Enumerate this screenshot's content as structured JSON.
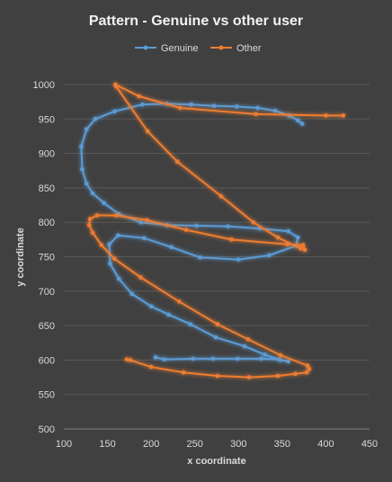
{
  "chart_data": {
    "type": "scatter",
    "title": "Pattern - Genuine vs other user",
    "xlabel": "x coordinate",
    "ylabel": "y coordinate",
    "xlim": [
      100,
      450
    ],
    "ylim": [
      500,
      1000
    ],
    "xticks": [
      100,
      150,
      200,
      250,
      300,
      350,
      400,
      450
    ],
    "yticks": [
      500,
      550,
      600,
      650,
      700,
      750,
      800,
      850,
      900,
      950,
      1000
    ],
    "grid": true,
    "legend": "top",
    "series": [
      {
        "name": "Genuine",
        "color": "#5B9BD5",
        "points": [
          [
            373,
            943
          ],
          [
            368,
            948
          ],
          [
            358,
            955
          ],
          [
            342,
            962
          ],
          [
            322,
            966
          ],
          [
            298,
            968
          ],
          [
            272,
            969
          ],
          [
            246,
            971
          ],
          [
            218,
            972
          ],
          [
            190,
            971
          ],
          [
            158,
            961
          ],
          [
            136,
            950
          ],
          [
            126,
            935
          ],
          [
            120,
            910
          ],
          [
            121,
            877
          ],
          [
            126,
            856
          ],
          [
            133,
            842
          ],
          [
            146,
            828
          ],
          [
            163,
            812
          ],
          [
            188,
            800
          ],
          [
            218,
            796
          ],
          [
            252,
            795
          ],
          [
            288,
            794
          ],
          [
            324,
            791
          ],
          [
            357,
            787
          ],
          [
            368,
            778
          ],
          [
            366,
            766
          ],
          [
            335,
            752
          ],
          [
            300,
            746
          ],
          [
            256,
            749
          ],
          [
            223,
            764
          ],
          [
            192,
            777
          ],
          [
            162,
            781
          ],
          [
            152,
            768
          ],
          [
            153,
            740
          ],
          [
            163,
            718
          ],
          [
            178,
            696
          ],
          [
            200,
            678
          ],
          [
            220,
            666
          ],
          [
            245,
            652
          ],
          [
            274,
            633
          ],
          [
            307,
            620
          ],
          [
            330,
            608
          ],
          [
            348,
            600
          ],
          [
            357,
            598
          ],
          [
            346,
            601
          ],
          [
            326,
            602
          ],
          [
            299,
            602
          ],
          [
            271,
            602
          ],
          [
            248,
            602
          ],
          [
            215,
            601
          ],
          [
            205,
            604
          ]
        ]
      },
      {
        "name": "Other",
        "color": "#ED7D31",
        "points": [
          [
            420,
            955
          ],
          [
            400,
            955
          ],
          [
            320,
            957
          ],
          [
            233,
            966
          ],
          [
            186,
            983
          ],
          [
            159,
            1000
          ],
          [
            160,
            997
          ],
          [
            196,
            932
          ],
          [
            230,
            888
          ],
          [
            280,
            838
          ],
          [
            317,
            800
          ],
          [
            345,
            778
          ],
          [
            371,
            762
          ],
          [
            376,
            760
          ],
          [
            374,
            767
          ],
          [
            356,
            768
          ],
          [
            292,
            775
          ],
          [
            240,
            789
          ],
          [
            195,
            803
          ],
          [
            160,
            810
          ],
          [
            138,
            810
          ],
          [
            130,
            805
          ],
          [
            129,
            796
          ],
          [
            133,
            785
          ],
          [
            143,
            767
          ],
          [
            158,
            747
          ],
          [
            188,
            720
          ],
          [
            232,
            685
          ],
          [
            276,
            652
          ],
          [
            311,
            630
          ],
          [
            348,
            607
          ],
          [
            379,
            592
          ],
          [
            381,
            587
          ],
          [
            378,
            582
          ],
          [
            365,
            580
          ],
          [
            345,
            577
          ],
          [
            312,
            575
          ],
          [
            276,
            577
          ],
          [
            237,
            582
          ],
          [
            200,
            590
          ],
          [
            176,
            600
          ],
          [
            172,
            601
          ]
        ]
      }
    ]
  }
}
